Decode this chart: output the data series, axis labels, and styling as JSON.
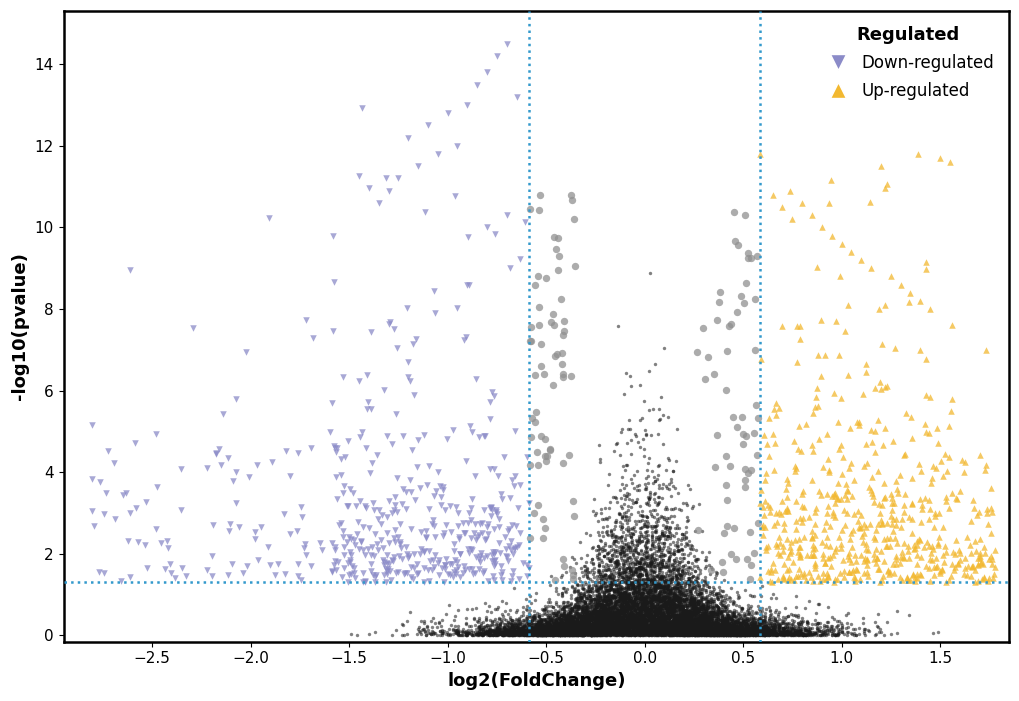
{
  "xlabel": "log2(FoldChange)",
  "ylabel": "-log10(pvalue)",
  "xlim": [
    -2.95,
    1.85
  ],
  "ylim": [
    -0.15,
    15.3
  ],
  "xticks": [
    -2.5,
    -2.0,
    -1.5,
    -1.0,
    -0.5,
    0.0,
    0.5,
    1.0,
    1.5
  ],
  "yticks": [
    0,
    2,
    4,
    6,
    8,
    10,
    12,
    14
  ],
  "fc_low": -0.585,
  "fc_high": 0.585,
  "pval_thresh": 1.3,
  "down_color": "#8B8BC8",
  "up_color": "#F2B830",
  "black_color": "#1a1a1a",
  "gray_color": "#909090",
  "line_color": "#3399CC",
  "legend_title": "Regulated",
  "legend_down": "Down-regulated",
  "legend_up": "Up-regulated",
  "random_seed": 42
}
